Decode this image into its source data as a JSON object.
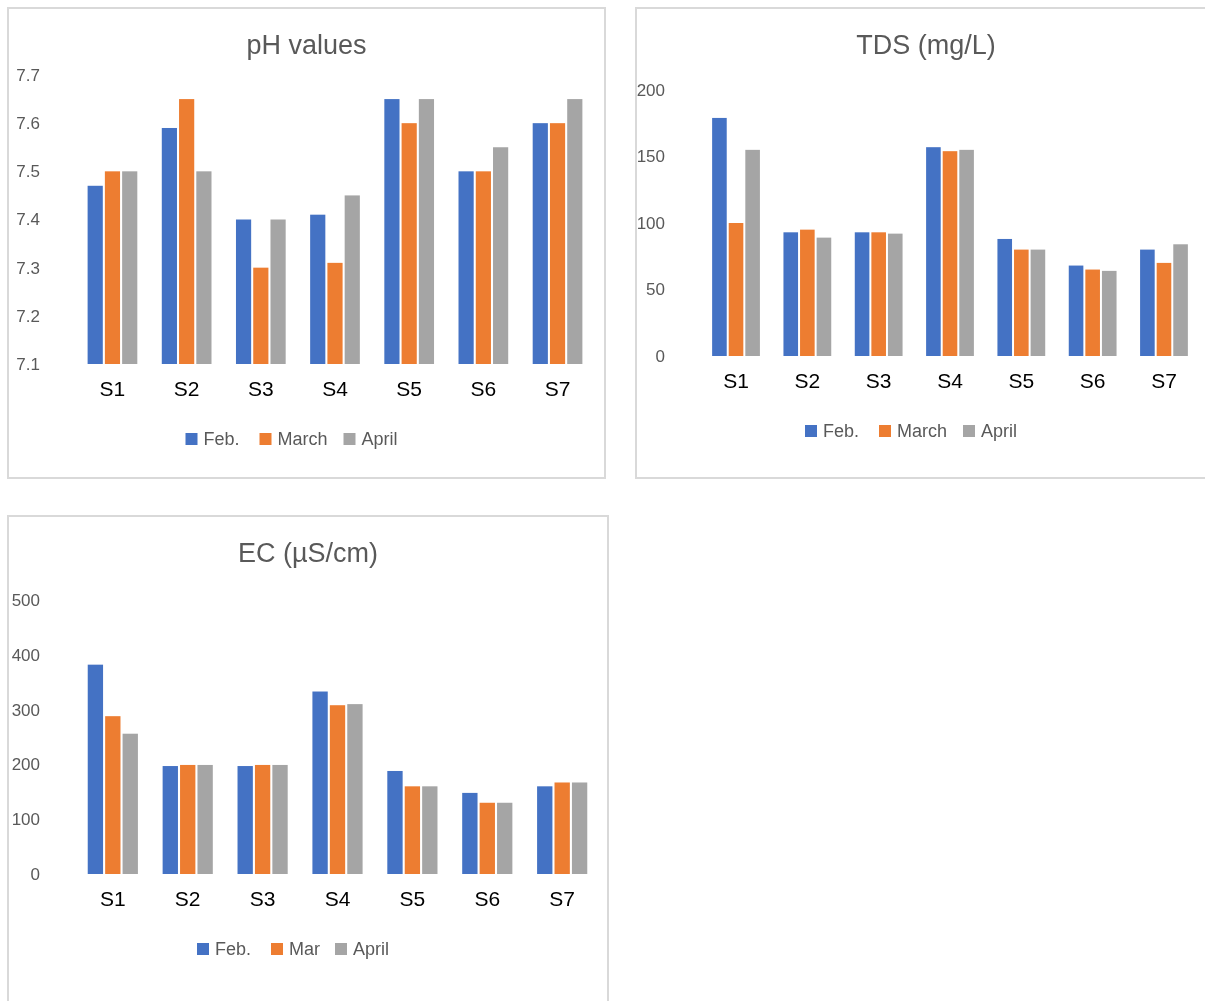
{
  "chart_data": [
    {
      "type": "bar",
      "title": "pH values",
      "categories": [
        "S1",
        "S2",
        "S3",
        "S4",
        "S5",
        "S6",
        "S7"
      ],
      "series": [
        {
          "name": "Feb.",
          "color": "#4472c4",
          "values": [
            7.47,
            7.59,
            7.4,
            7.41,
            7.65,
            7.5,
            7.6
          ]
        },
        {
          "name": "March",
          "color": "#ed7d31",
          "values": [
            7.5,
            7.65,
            7.3,
            7.31,
            7.6,
            7.5,
            7.6
          ]
        },
        {
          "name": "April",
          "color": "#a5a5a5",
          "values": [
            7.5,
            7.5,
            7.4,
            7.45,
            7.65,
            7.55,
            7.65
          ]
        }
      ],
      "ylim": [
        7.1,
        7.7
      ],
      "yticks": [
        7.1,
        7.2,
        7.3,
        7.4,
        7.5,
        7.6,
        7.7
      ],
      "legend": "bottom"
    },
    {
      "type": "bar",
      "title": "TDS (mg/L)",
      "categories": [
        "S1",
        "S2",
        "S3",
        "S4",
        "S5",
        "S6",
        "S7"
      ],
      "series": [
        {
          "name": "Feb.",
          "color": "#4472c4",
          "values": [
            179,
            93,
            93,
            157,
            88,
            68,
            80
          ]
        },
        {
          "name": "March",
          "color": "#ed7d31",
          "values": [
            100,
            95,
            93,
            154,
            80,
            65,
            70
          ]
        },
        {
          "name": "April",
          "color": "#a5a5a5",
          "values": [
            155,
            89,
            92,
            155,
            80,
            64,
            84
          ]
        }
      ],
      "ylim": [
        0,
        200
      ],
      "yticks": [
        0,
        50,
        100,
        150,
        200
      ],
      "legend": "bottom"
    },
    {
      "type": "bar",
      "title": "EC (µS/cm)",
      "categories": [
        "S1",
        "S2",
        "S3",
        "S4",
        "S5",
        "S6",
        "S7"
      ],
      "series": [
        {
          "name": "Feb.",
          "color": "#4472c4",
          "values": [
            382,
            197,
            197,
            333,
            188,
            148,
            160
          ]
        },
        {
          "name": "Mar",
          "color": "#ed7d31",
          "values": [
            288,
            199,
            199,
            308,
            160,
            130,
            167
          ]
        },
        {
          "name": "April",
          "color": "#a5a5a5",
          "values": [
            256,
            199,
            199,
            310,
            160,
            130,
            167
          ]
        }
      ],
      "ylim": [
        0,
        500
      ],
      "yticks": [
        0,
        100,
        200,
        300,
        400,
        500
      ],
      "legend": "bottom"
    }
  ]
}
